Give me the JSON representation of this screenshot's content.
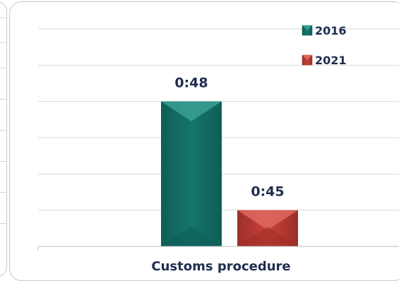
{
  "chart_data": {
    "type": "bar",
    "title": "",
    "xlabel": "",
    "ylabel": "",
    "categories": [
      "Customs procedure"
    ],
    "series": [
      {
        "name": "2016",
        "values": [
          48
        ],
        "label": "0:48",
        "color": "#14766c",
        "highlight": "#3fa79a",
        "shade": "#0f5e56"
      },
      {
        "name": "2021",
        "values": [
          45
        ],
        "label": "0:45",
        "color": "#c6423a",
        "highlight": "#e47065",
        "shade": "#9e2e28"
      }
    ],
    "ylim": [
      44,
      50
    ],
    "grid": true,
    "legend_position": "top-right",
    "label_color": "#1f2d4e"
  }
}
